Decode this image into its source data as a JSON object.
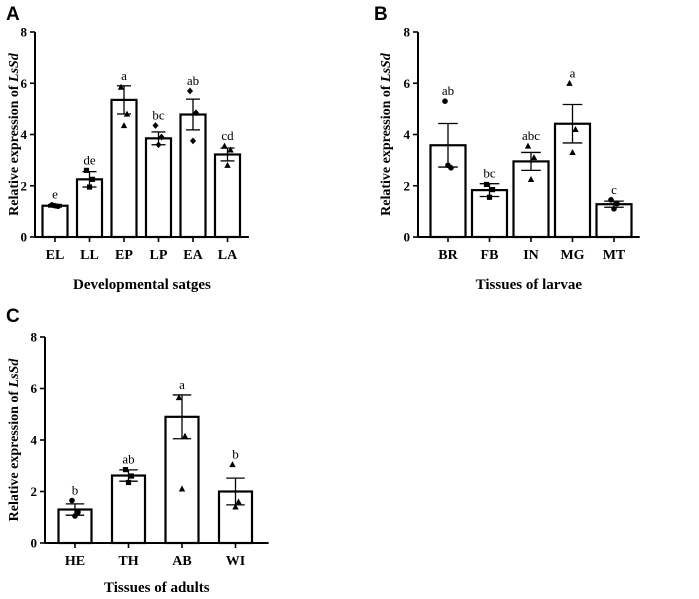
{
  "chart_data": [
    {
      "type": "bar",
      "panel": "A",
      "title": "",
      "ylabel": "Relative expression of LsSd",
      "ylabel_prefix": "Relative expression of ",
      "ylabel_gene": "LsSd",
      "xlabel": "Developmental satges",
      "ylim": [
        0,
        8
      ],
      "yticks": [
        "0",
        "2",
        "4",
        "6",
        "8"
      ],
      "categories": [
        "EL",
        "LL",
        "EP",
        "LP",
        "EA",
        "LA"
      ],
      "values": [
        1.22,
        2.25,
        5.35,
        3.85,
        4.78,
        3.22
      ],
      "errors": [
        0.05,
        0.3,
        0.55,
        0.25,
        0.6,
        0.25
      ],
      "letters": [
        "e",
        "de",
        "a",
        "bc",
        "ab",
        "cd"
      ],
      "points": [
        {
          "shape": "circle",
          "values": [
            1.25,
            1.2,
            1.22
          ]
        },
        {
          "shape": "square",
          "values": [
            2.6,
            2.25,
            1.95
          ]
        },
        {
          "shape": "triangle",
          "values": [
            5.85,
            4.8,
            4.35
          ]
        },
        {
          "shape": "diamond",
          "values": [
            4.35,
            3.9,
            3.6
          ]
        },
        {
          "shape": "diamond",
          "values": [
            5.7,
            4.85,
            3.75
          ]
        },
        {
          "shape": "triangle",
          "values": [
            3.55,
            3.4,
            2.8
          ]
        }
      ]
    },
    {
      "type": "bar",
      "panel": "B",
      "title": "",
      "ylabel": "Relative expression of LsSd",
      "ylabel_prefix": "Relative expression of ",
      "ylabel_gene": "LsSd",
      "xlabel": "Tissues of larvae",
      "ylim": [
        0,
        8
      ],
      "yticks": [
        "0",
        "2",
        "4",
        "6",
        "8"
      ],
      "categories": [
        "BR",
        "FB",
        "IN",
        "MG",
        "MT"
      ],
      "values": [
        3.58,
        1.83,
        2.95,
        4.42,
        1.28
      ],
      "errors": [
        0.85,
        0.25,
        0.35,
        0.75,
        0.12
      ],
      "letters": [
        "ab",
        "bc",
        "abc",
        "a",
        "c"
      ],
      "points": [
        {
          "shape": "circle",
          "values": [
            5.3,
            2.7,
            2.8
          ]
        },
        {
          "shape": "square",
          "values": [
            2.05,
            1.85,
            1.55
          ]
        },
        {
          "shape": "triangle",
          "values": [
            3.55,
            3.1,
            2.25
          ]
        },
        {
          "shape": "triangle",
          "values": [
            6.0,
            4.2,
            3.3
          ]
        },
        {
          "shape": "circle",
          "values": [
            1.45,
            1.3,
            1.1
          ]
        }
      ]
    },
    {
      "type": "bar",
      "panel": "C",
      "title": "",
      "ylabel": "Relative expression of LsSd",
      "ylabel_prefix": "Relative expression of ",
      "ylabel_gene": "LsSd",
      "xlabel": "Tissues of adults",
      "ylim": [
        0,
        8
      ],
      "yticks": [
        "0",
        "2",
        "4",
        "6",
        "8"
      ],
      "categories": [
        "HE",
        "TH",
        "AB",
        "WI"
      ],
      "values": [
        1.3,
        2.62,
        4.9,
        2.0
      ],
      "errors": [
        0.22,
        0.22,
        0.85,
        0.52
      ],
      "letters": [
        "b",
        "ab",
        "a",
        "b"
      ],
      "points": [
        {
          "shape": "circle",
          "values": [
            1.65,
            1.2,
            1.05
          ]
        },
        {
          "shape": "square",
          "values": [
            2.85,
            2.6,
            2.35
          ]
        },
        {
          "shape": "triangle",
          "values": [
            5.65,
            4.15,
            2.1
          ]
        },
        {
          "shape": "triangle",
          "values": [
            3.05,
            1.6,
            1.4
          ]
        }
      ]
    }
  ]
}
